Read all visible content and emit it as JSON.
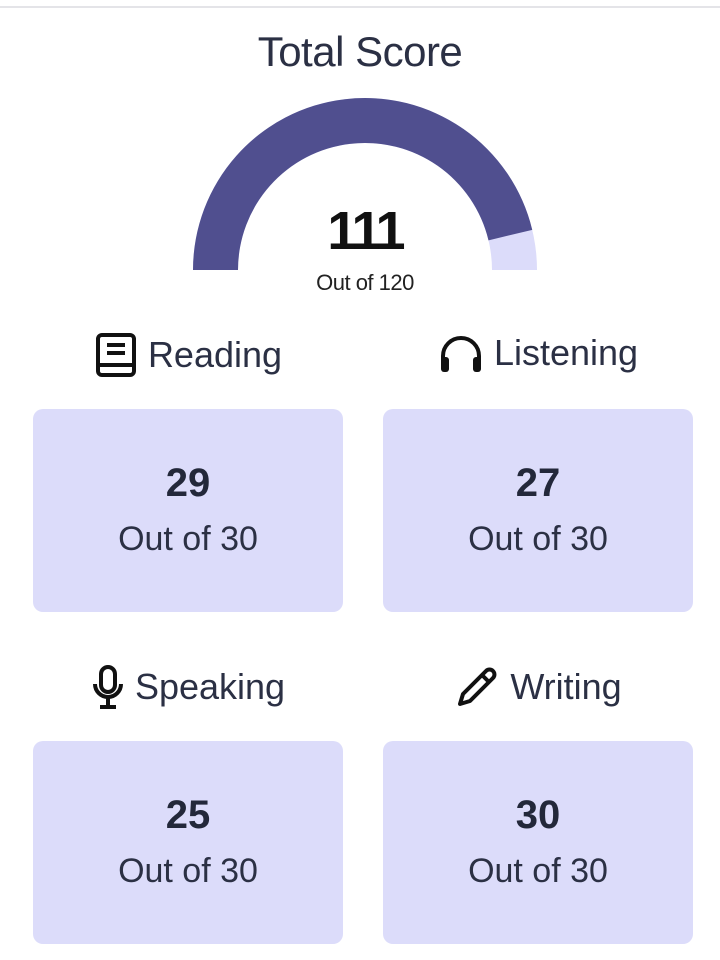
{
  "total": {
    "title": "Total Score",
    "score": "111",
    "out_of": "Out of 120",
    "value": 111,
    "max": 120
  },
  "colors": {
    "gauge_fill": "#504f8f",
    "gauge_track": "#dcdcfa",
    "card_bg": "#dcdcfa"
  },
  "sections": [
    {
      "label": "Reading",
      "icon": "book-icon",
      "score": "29",
      "out_of": "Out of 30"
    },
    {
      "label": "Listening",
      "icon": "headphones-icon",
      "score": "27",
      "out_of": "Out of 30"
    },
    {
      "label": "Speaking",
      "icon": "microphone-icon",
      "score": "25",
      "out_of": "Out of 30"
    },
    {
      "label": "Writing",
      "icon": "pencil-icon",
      "score": "30",
      "out_of": "Out of 30"
    }
  ]
}
